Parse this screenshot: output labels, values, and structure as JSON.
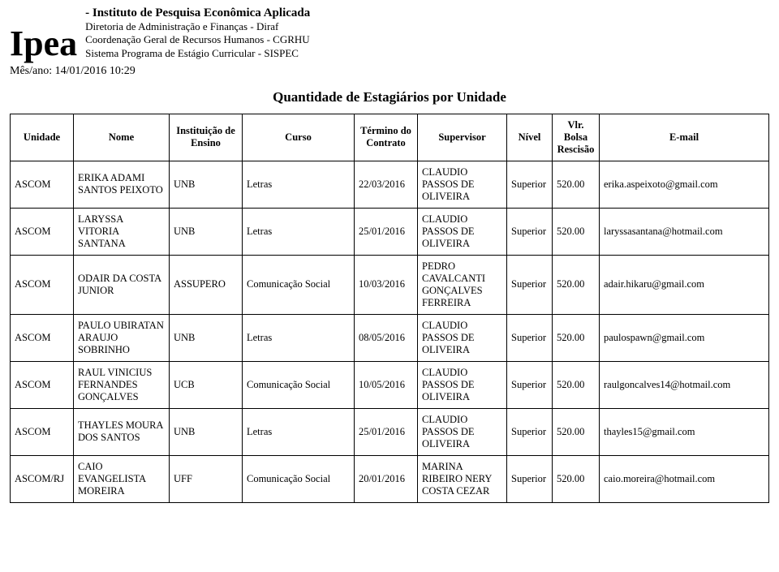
{
  "header": {
    "logo": "Ipea",
    "org_name": "- Instituto de Pesquisa Econômica Aplicada",
    "line2": "Diretoria de Administração e Finanças - Diraf",
    "line3": "Coordenação Geral de Recursos Humanos - CGRHU",
    "line4": "Sistema Programa de Estágio Curricular - SISPEC",
    "timestamp_label": "Mês/ano: 14/01/2016 10:29"
  },
  "report_title": "Quantidade de Estagiários por Unidade",
  "columns": {
    "unidade": "Unidade",
    "nome": "Nome",
    "inst": "Instituição de Ensino",
    "curso": "Curso",
    "termino": "Término do Contrato",
    "supervisor": "Supervisor",
    "nivel": "Nível",
    "bolsa": "Vlr. Bolsa Rescisão",
    "email": "E-mail"
  },
  "rows": [
    {
      "unidade": "ASCOM",
      "nome": "ERIKA ADAMI SANTOS PEIXOTO",
      "inst": "UNB",
      "curso": "Letras",
      "termino": "22/03/2016",
      "supervisor": "CLAUDIO PASSOS DE OLIVEIRA",
      "nivel": "Superior",
      "bolsa": "520.00",
      "email": "erika.aspeixoto@gmail.com"
    },
    {
      "unidade": "ASCOM",
      "nome": "LARYSSA VITORIA SANTANA",
      "inst": "UNB",
      "curso": "Letras",
      "termino": "25/01/2016",
      "supervisor": "CLAUDIO PASSOS DE OLIVEIRA",
      "nivel": "Superior",
      "bolsa": "520.00",
      "email": "laryssasantana@hotmail.com"
    },
    {
      "unidade": "ASCOM",
      "nome": "ODAIR DA COSTA JUNIOR",
      "inst": "ASSUPERO",
      "curso": "Comunicação Social",
      "termino": "10/03/2016",
      "supervisor": "PEDRO CAVALCANTI GONÇALVES FERREIRA",
      "nivel": "Superior",
      "bolsa": "520.00",
      "email": "adair.hikaru@gmail.com"
    },
    {
      "unidade": "ASCOM",
      "nome": "PAULO UBIRATAN ARAUJO SOBRINHO",
      "inst": "UNB",
      "curso": "Letras",
      "termino": "08/05/2016",
      "supervisor": "CLAUDIO PASSOS DE OLIVEIRA",
      "nivel": "Superior",
      "bolsa": "520.00",
      "email": "paulospawn@gmail.com"
    },
    {
      "unidade": "ASCOM",
      "nome": "RAUL VINICIUS FERNANDES GONÇALVES",
      "inst": "UCB",
      "curso": "Comunicação Social",
      "termino": "10/05/2016",
      "supervisor": "CLAUDIO PASSOS DE OLIVEIRA",
      "nivel": "Superior",
      "bolsa": "520.00",
      "email": "raulgoncalves14@hotmail.com"
    },
    {
      "unidade": "ASCOM",
      "nome": "THAYLES MOURA DOS SANTOS",
      "inst": "UNB",
      "curso": "Letras",
      "termino": "25/01/2016",
      "supervisor": "CLAUDIO PASSOS DE OLIVEIRA",
      "nivel": "Superior",
      "bolsa": "520.00",
      "email": "thayles15@gmail.com"
    },
    {
      "unidade": "ASCOM/RJ",
      "nome": "CAIO EVANGELISTA MOREIRA",
      "inst": "UFF",
      "curso": "Comunicação Social",
      "termino": "20/01/2016",
      "supervisor": "MARINA RIBEIRO NERY COSTA CEZAR",
      "nivel": "Superior",
      "bolsa": "520.00",
      "email": "caio.moreira@hotmail.com"
    }
  ]
}
